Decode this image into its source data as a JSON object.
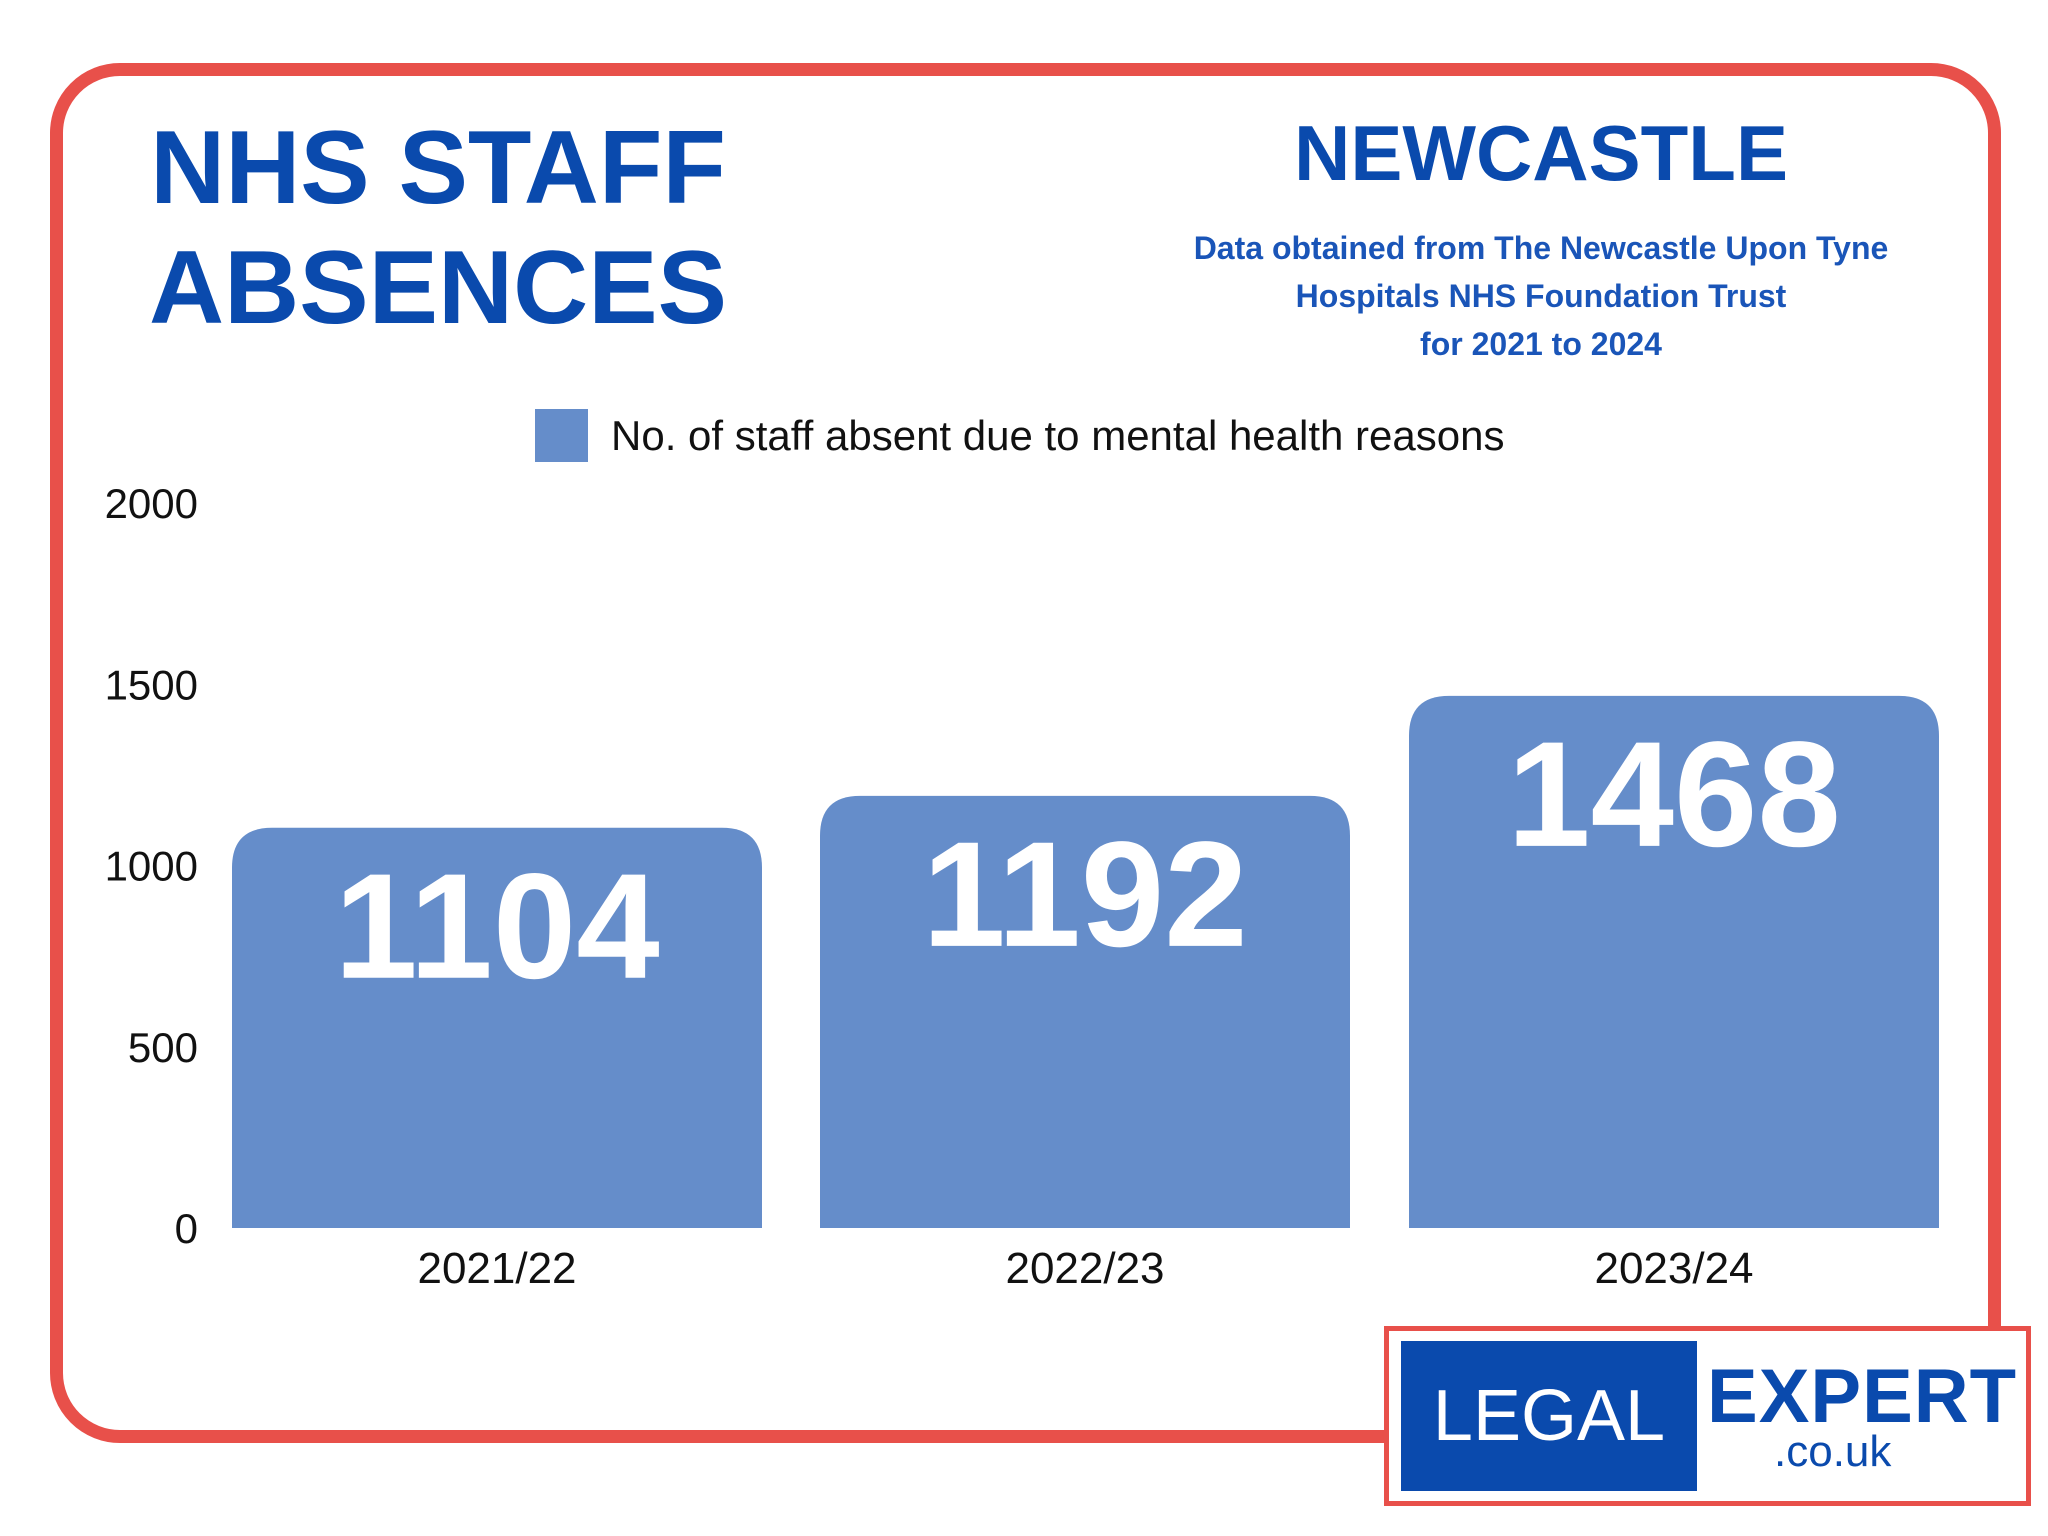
{
  "header": {
    "title_line1": "NHS STAFF",
    "title_line2": "ABSENCES",
    "location": "NEWCASTLE",
    "source_line1": "Data obtained from The Newcastle Upon Tyne",
    "source_line2": "Hospitals NHS Foundation Trust",
    "source_line3": "for 2021 to 2024"
  },
  "logo": {
    "left": "LEGAL",
    "right": "EXPERT",
    "domain": ".co.uk"
  },
  "colors": {
    "bar": "#658dca",
    "border": "#e8504a",
    "brand": "#0a4aad"
  },
  "chart_data": {
    "type": "bar",
    "title": "NHS STAFF ABSENCES",
    "categories": [
      "2021/22",
      "2022/23",
      "2023/24"
    ],
    "series": [
      {
        "name": "No. of staff absent due to mental health reasons",
        "values": [
          1104,
          1192,
          1468
        ]
      }
    ],
    "labels": [
      "1104",
      "1192",
      "1468"
    ],
    "yticks": [
      "0",
      "500",
      "1000",
      "1500",
      "2000"
    ],
    "ylim": [
      0,
      2000
    ],
    "xlabel": "",
    "ylabel": "",
    "grid": false,
    "legend": "top-center"
  }
}
